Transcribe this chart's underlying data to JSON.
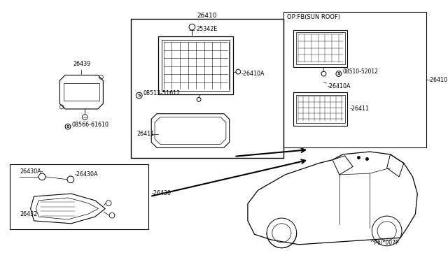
{
  "bg_color": "#ffffff",
  "line_color": "#000000",
  "fig_width": 6.4,
  "fig_height": 3.72,
  "dpi": 100,
  "watermark": "^P6/*007P",
  "labels": {
    "26410_top": "26410",
    "26439": "26439",
    "08566": "08566-61610",
    "25342E": "25342E",
    "26410A_main": "-26410A",
    "08513": "08513-51612",
    "26411_main": "26411",
    "op_fix": "OP:FB(SUN ROOF)",
    "08510": "08510-52012",
    "26410_right": "-26410",
    "26410A_right": "-26410A",
    "26411_right": "-26411",
    "26430A_a": "26430A-",
    "26430A_b": "-26430A",
    "26432": "26432",
    "26430": "-26430"
  }
}
